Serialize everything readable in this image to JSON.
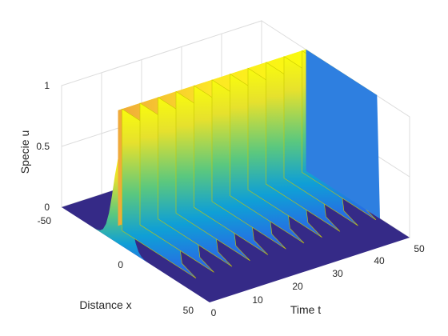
{
  "chart_data": {
    "type": "surface",
    "title": "",
    "xlabel": "Time t",
    "ylabel": "Distance x",
    "zlabel": "Specie u",
    "xlim": [
      0,
      50
    ],
    "ylim": [
      -50,
      50
    ],
    "zlim": [
      0,
      1
    ],
    "x_ticks": [
      "0",
      "10",
      "20",
      "30",
      "40",
      "50"
    ],
    "y_ticks": [
      "-50",
      "0",
      "50"
    ],
    "z_ticks": [
      "0",
      "0.5",
      "1"
    ],
    "grid": true,
    "colormap": "parula",
    "description_values": {
      "initial_peak_x": [
        -20,
        0
      ],
      "plateau_level": 1.0,
      "front_x_range": [
        -20,
        28
      ],
      "time_steps_shown": [
        0,
        50
      ]
    }
  },
  "colors": {
    "low": "#352a87",
    "mid": "#0f9fd6",
    "high": "#f9fb0e",
    "grid": "#dcdcdc",
    "axis": "#262626"
  }
}
